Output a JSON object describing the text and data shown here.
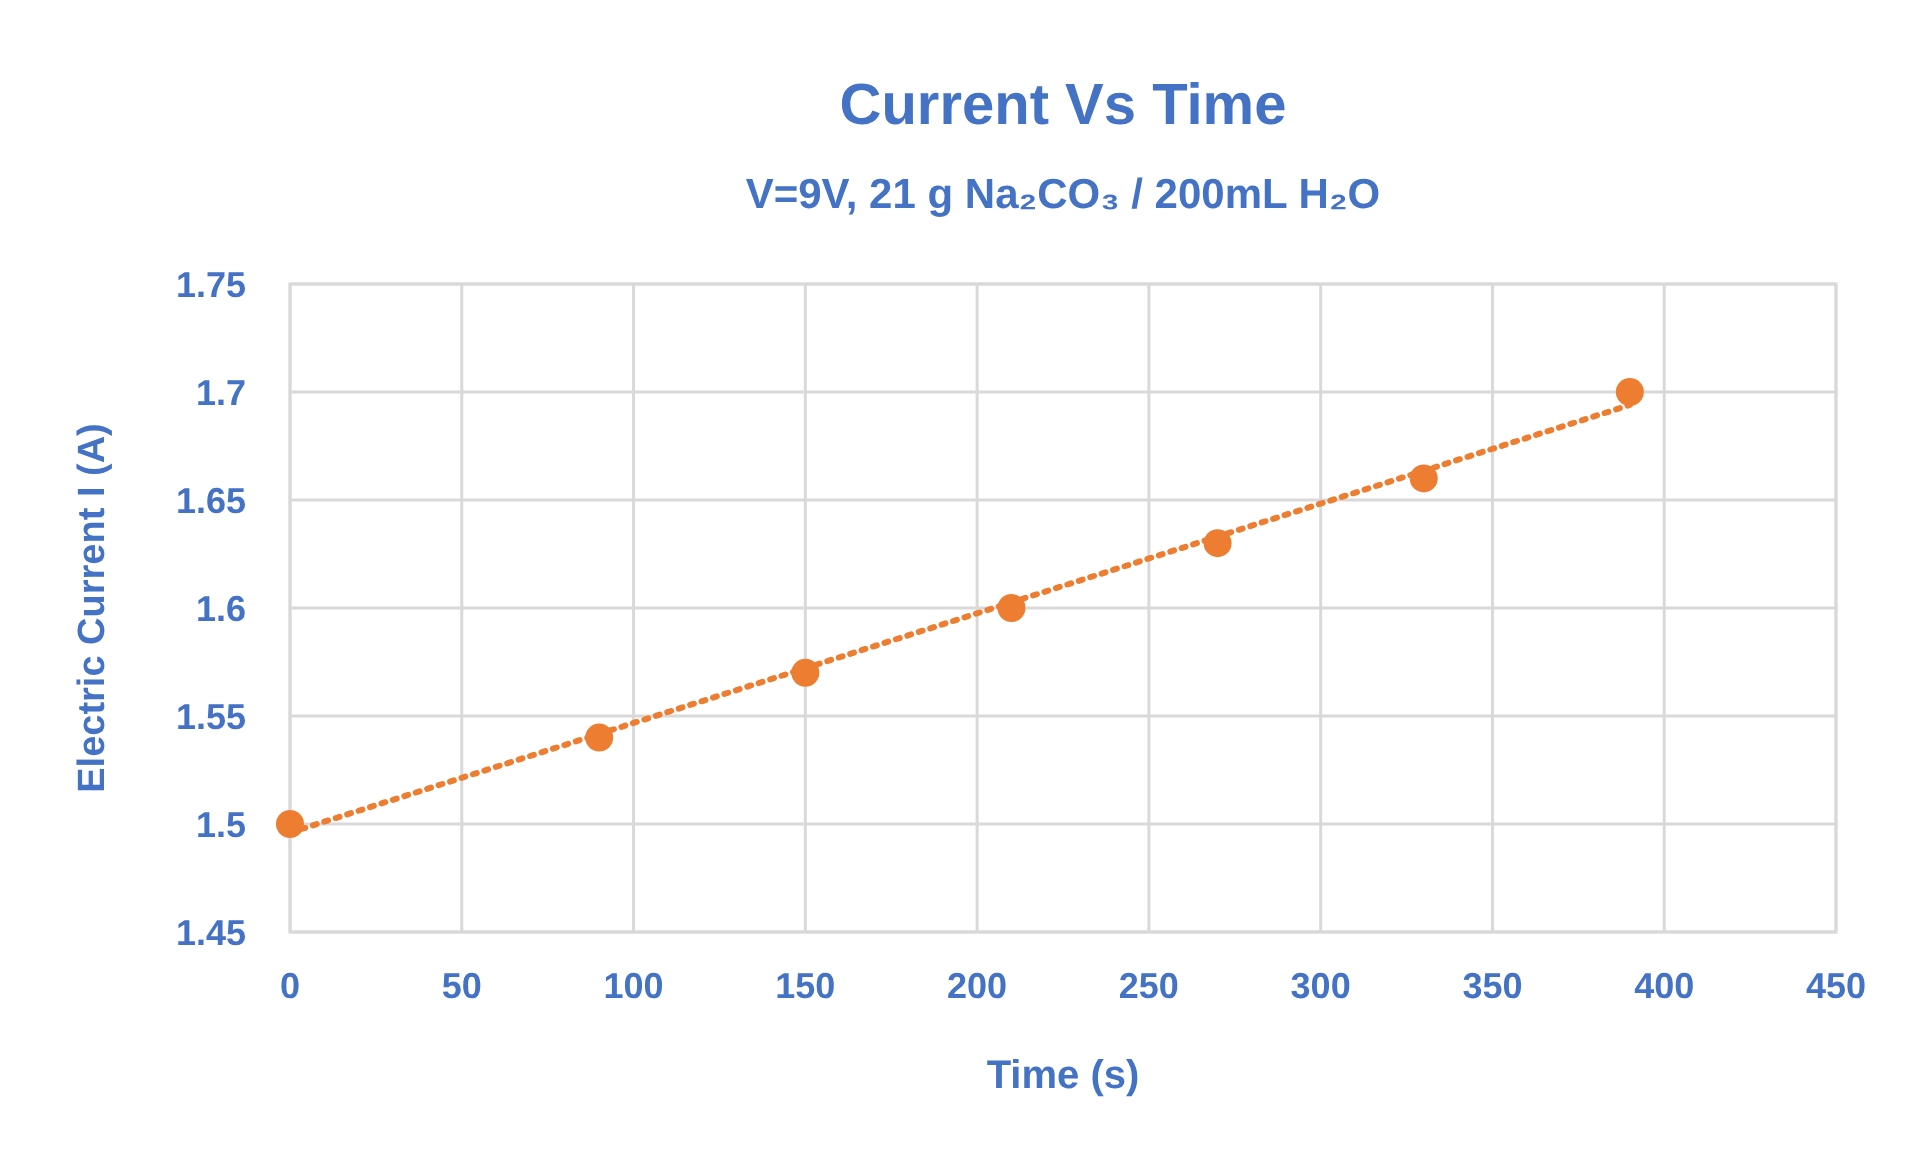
{
  "chart_data": {
    "type": "scatter",
    "title": "Current Vs Time",
    "subtitle": "V=9V, 21 g Na₂CO₃ / 200mL H₂O",
    "xlabel": "Time (s)",
    "ylabel": "Electric Current I (A)",
    "xlim": [
      0,
      450
    ],
    "xticks": [
      0,
      50,
      100,
      150,
      200,
      250,
      300,
      350,
      400,
      450
    ],
    "ylim": [
      1.45,
      1.75
    ],
    "yticks": [
      1.45,
      1.5,
      1.55,
      1.6,
      1.65,
      1.7,
      1.75
    ],
    "grid": true,
    "series": [
      {
        "type": "line",
        "color": "#ed7d31",
        "x": [
          0,
          390
        ],
        "values": [
          1.496,
          1.694
        ],
        "marker": "none",
        "line_style": "dotted"
      },
      {
        "color": "#ed7d31",
        "x": [
          0,
          90,
          150,
          210,
          270,
          330,
          390
        ],
        "values": [
          1.5,
          1.54,
          1.57,
          1.6,
          1.63,
          1.66,
          1.7
        ],
        "marker": "circle"
      }
    ]
  }
}
